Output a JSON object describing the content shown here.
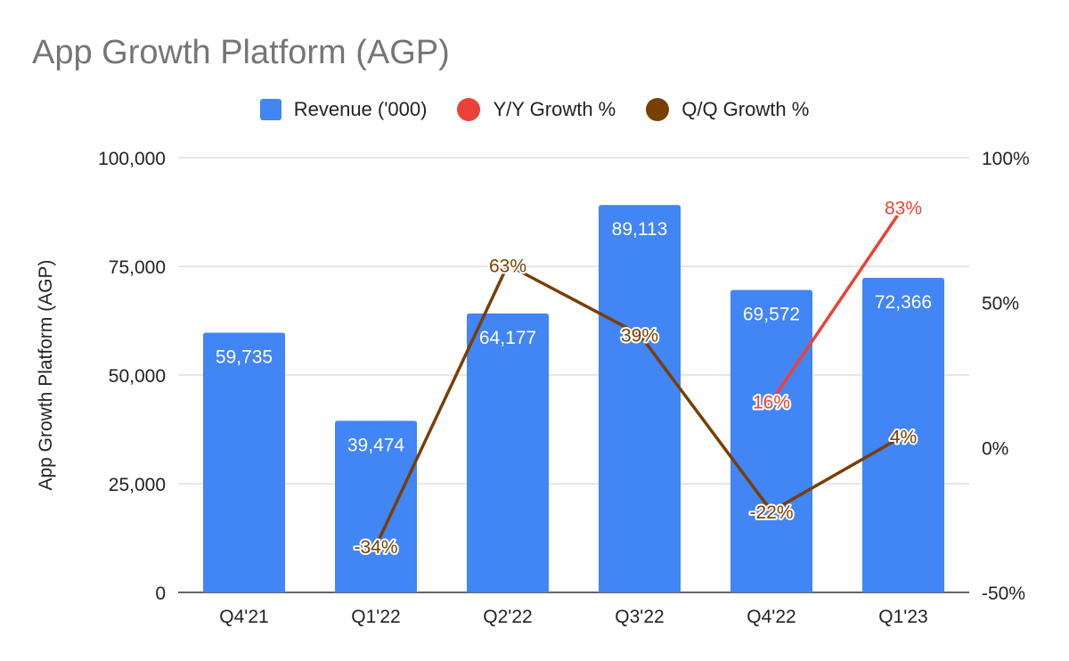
{
  "title": "App Growth Platform (AGP)",
  "chart_data": {
    "type": "bar",
    "title": "App Growth Platform (AGP)",
    "ylabel": "App Growth Platform (AGP)",
    "categories": [
      "Q4'21",
      "Q1'22",
      "Q2'22",
      "Q3'22",
      "Q4'22",
      "Q1'23"
    ],
    "ylim_left": [
      0,
      100000
    ],
    "yticks_left": [
      "0",
      "25,000",
      "50,000",
      "75,000",
      "100,000"
    ],
    "ylim_right": [
      -50,
      100
    ],
    "yticks_right": [
      "-50%",
      "0%",
      "50%",
      "100%"
    ],
    "grid": true,
    "legend_position": "top",
    "bars": {
      "name": "Revenue ('000)",
      "color": "#4285f4",
      "values": [
        59735,
        39474,
        64177,
        89113,
        69572,
        72366
      ],
      "labels": [
        "59,735",
        "39,474",
        "64,177",
        "89,113",
        "69,572",
        "72,366"
      ]
    },
    "lines": [
      {
        "name": "Y/Y Growth %",
        "color": "#ea4335",
        "values": [
          null,
          null,
          null,
          null,
          16,
          83
        ],
        "labels": [
          null,
          null,
          null,
          null,
          "16%",
          "83%"
        ]
      },
      {
        "name": "Q/Q Growth %",
        "color": "#783f04",
        "values": [
          null,
          -34,
          63,
          39,
          -22,
          4
        ],
        "labels": [
          null,
          "-34%",
          "63%",
          "39%",
          "-22%",
          "4%"
        ]
      }
    ]
  }
}
